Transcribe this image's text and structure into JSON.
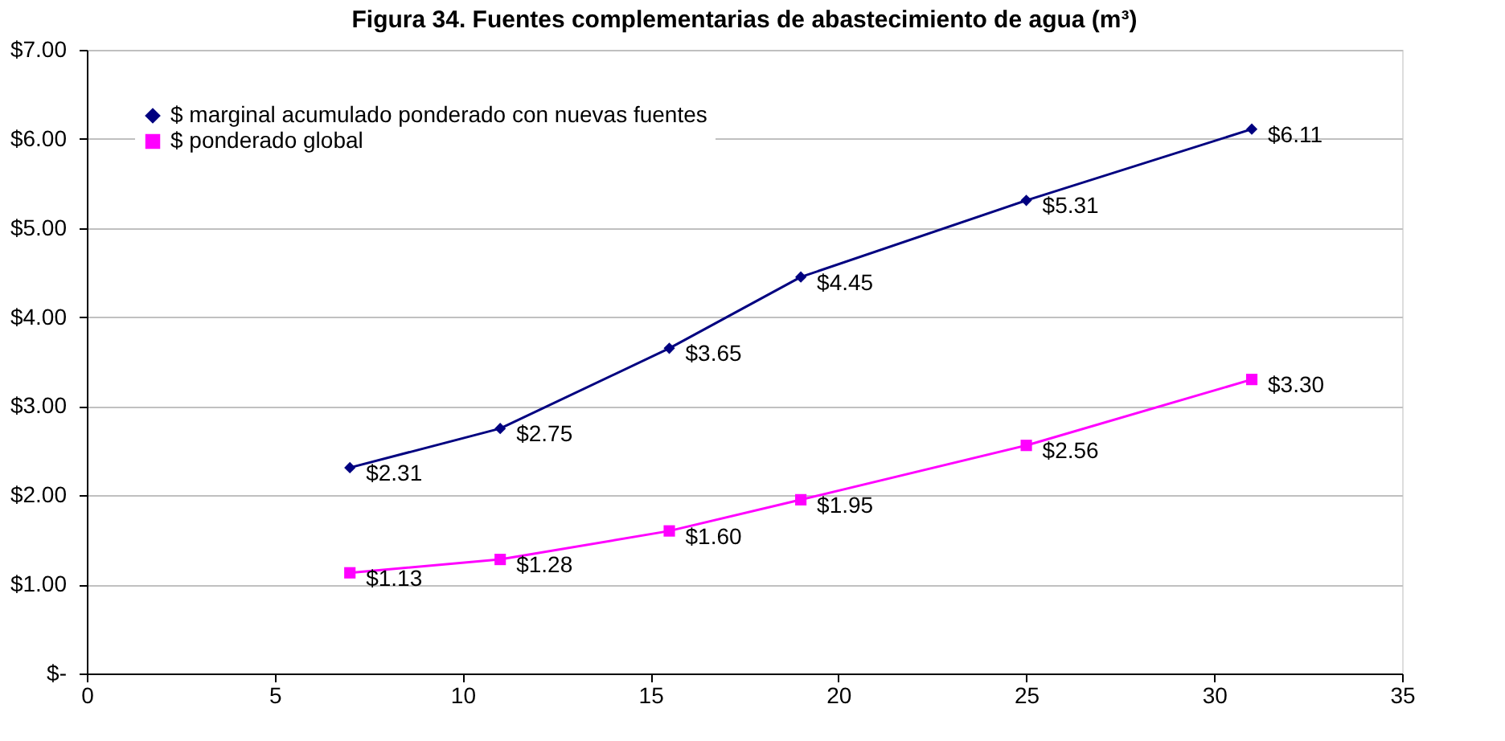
{
  "chart_data": {
    "type": "line",
    "title": "Figura 34. Fuentes complementarias de abastecimiento de agua (m³)",
    "xlim": [
      0,
      35
    ],
    "xticks": [
      0,
      5,
      10,
      15,
      20,
      25,
      30,
      35
    ],
    "ylim": [
      0,
      7
    ],
    "yticks": [
      {
        "value": 0,
        "label": "$-"
      },
      {
        "value": 1,
        "label": "$1.00"
      },
      {
        "value": 2,
        "label": "$2.00"
      },
      {
        "value": 3,
        "label": "$3.00"
      },
      {
        "value": 4,
        "label": "$4.00"
      },
      {
        "value": 5,
        "label": "$5.00"
      },
      {
        "value": 6,
        "label": "$6.00"
      },
      {
        "value": 7,
        "label": "$7.00"
      }
    ],
    "grid": "y",
    "legend": "top left",
    "series": [
      {
        "name": "$ marginal acumulado ponderado con nuevas fuentes",
        "color": "#000080",
        "marker": "diamond",
        "x": [
          7,
          11,
          15.5,
          19,
          25,
          31
        ],
        "values": [
          2.31,
          2.75,
          3.65,
          4.45,
          5.31,
          6.11
        ],
        "value_labels": [
          "$2.31",
          "$2.75",
          "$3.65",
          "$4.45",
          "$5.31",
          "$6.11"
        ]
      },
      {
        "name": "$ ponderado global",
        "color": "#ff00ff",
        "marker": "square",
        "x": [
          7,
          11,
          15.5,
          19,
          25,
          31
        ],
        "values": [
          1.13,
          1.28,
          1.6,
          1.95,
          2.56,
          3.3
        ],
        "value_labels": [
          "$1.13",
          "$1.28",
          "$1.60",
          "$1.95",
          "$2.56",
          "$3.30"
        ]
      }
    ]
  }
}
